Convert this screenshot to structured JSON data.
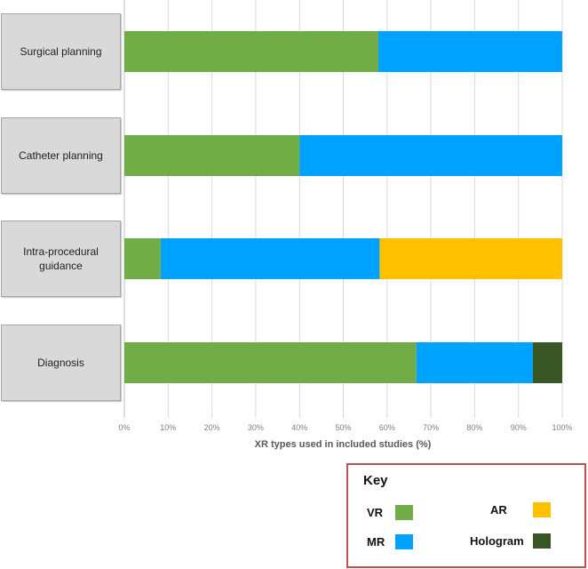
{
  "chart_data": {
    "type": "bar",
    "orientation": "horizontal",
    "stacked": true,
    "categories": [
      "Surgical planning",
      "Catheter planning",
      "Intra-procedural guidance",
      "Diagnosis"
    ],
    "series": [
      {
        "name": "VR",
        "color": "#70ad47",
        "values": [
          58,
          40,
          8.3,
          66.7
        ]
      },
      {
        "name": "MR",
        "color": "#00a2ff",
        "values": [
          42,
          60,
          50,
          26.6
        ]
      },
      {
        "name": "AR",
        "color": "#ffc000",
        "values": [
          0,
          0,
          41.7,
          0
        ]
      },
      {
        "name": "Hologram",
        "color": "#375623",
        "values": [
          0,
          0,
          0,
          6.7
        ]
      }
    ],
    "xlabel": "XR types used in included studies (%)",
    "xlim": [
      0,
      100
    ],
    "xticks": [
      "0%",
      "10%",
      "20%",
      "30%",
      "40%",
      "50%",
      "60%",
      "70%",
      "80%",
      "90%",
      "100%"
    ],
    "grid": true
  },
  "key": {
    "title": "Key",
    "items": [
      {
        "label": "VR",
        "color": "#70ad47"
      },
      {
        "label": "AR",
        "color": "#ffc000"
      },
      {
        "label": "MR",
        "color": "#00a2ff"
      },
      {
        "label": "Hologram",
        "color": "#375623"
      }
    ]
  }
}
